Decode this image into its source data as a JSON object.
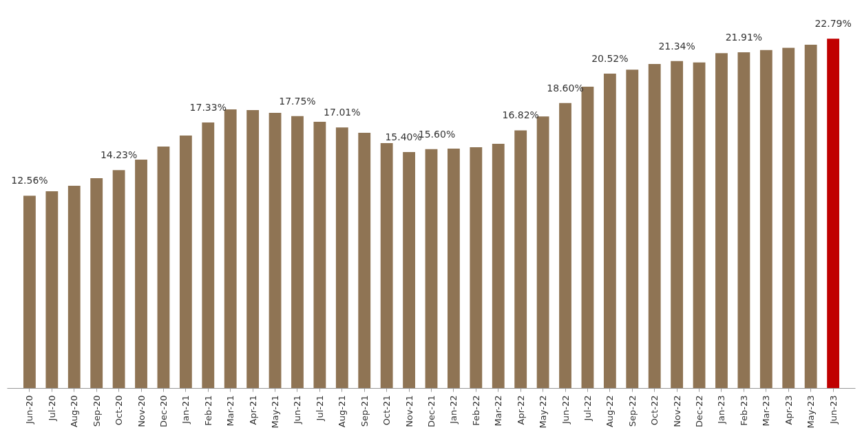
{
  "chart_data": {
    "type": "bar",
    "categories": [
      "Jun-20",
      "Jul-20",
      "Aug-20",
      "Sep-20",
      "Oct-20",
      "Nov-20",
      "Dec-20",
      "Jan-21",
      "Feb-21",
      "Mar-21",
      "Apr-21",
      "May-21",
      "Jun-21",
      "Jul-21",
      "Aug-21",
      "Sep-21",
      "Oct-21",
      "Nov-21",
      "Dec-21",
      "Jan-22",
      "Feb-22",
      "Mar-22",
      "Apr-22",
      "May-22",
      "Jun-22",
      "Jul-22",
      "Aug-22",
      "Sep-22",
      "Oct-22",
      "Nov-22",
      "Dec-22",
      "Jan-23",
      "Feb-23",
      "Mar-23",
      "Apr-23",
      "May-23",
      "Jun-23"
    ],
    "values": [
      12.56,
      12.85,
      13.21,
      13.7,
      14.23,
      14.91,
      15.76,
      16.48,
      17.33,
      18.18,
      18.14,
      17.96,
      17.75,
      17.38,
      17.01,
      16.66,
      15.99,
      15.4,
      15.6,
      15.63,
      15.72,
      15.94,
      16.82,
      17.73,
      18.6,
      19.66,
      20.52,
      20.78,
      21.14,
      21.34,
      21.25,
      21.85,
      21.91,
      22.05,
      22.2,
      22.4,
      22.79
    ],
    "value_labels": [
      "12.56%",
      null,
      null,
      null,
      "14.23%",
      null,
      null,
      null,
      "17.33%",
      null,
      null,
      null,
      "17.75%",
      null,
      "17.01%",
      null,
      null,
      "15.40%",
      "15.60%",
      null,
      null,
      null,
      "16.82%",
      null,
      "18.60%",
      null,
      "20.52%",
      null,
      null,
      "21.34%",
      null,
      null,
      "21.91%",
      null,
      null,
      null,
      "22.79%"
    ],
    "colors": [
      "#8f7454",
      "#8f7454",
      "#8f7454",
      "#8f7454",
      "#8f7454",
      "#8f7454",
      "#8f7454",
      "#8f7454",
      "#8f7454",
      "#8f7454",
      "#8f7454",
      "#8f7454",
      "#8f7454",
      "#8f7454",
      "#8f7454",
      "#8f7454",
      "#8f7454",
      "#8f7454",
      "#8f7454",
      "#8f7454",
      "#8f7454",
      "#8f7454",
      "#8f7454",
      "#8f7454",
      "#8f7454",
      "#8f7454",
      "#8f7454",
      "#8f7454",
      "#8f7454",
      "#8f7454",
      "#8f7454",
      "#8f7454",
      "#8f7454",
      "#8f7454",
      "#8f7454",
      "#8f7454",
      "#c00000"
    ],
    "grid": false
  }
}
